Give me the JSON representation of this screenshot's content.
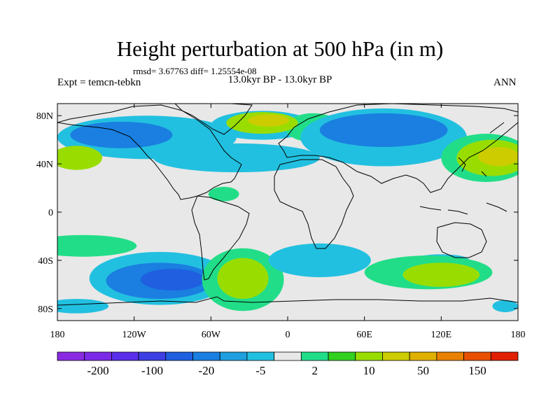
{
  "title": "Height perturbation at 500 hPa (in m)",
  "stats": "rmsd= 3.67763 diff= 1.25554e-08",
  "experiment": "Expt = temcn-tebkn",
  "subtitle": "13.0kyr BP - 13.0kyr BP",
  "season": "ANN",
  "map": {
    "projection": "cylindrical equidistant",
    "lon_range": [
      -180,
      180
    ],
    "lat_range": [
      -90,
      90
    ],
    "y_ticks": [
      {
        "lat": 80,
        "label": "80N"
      },
      {
        "lat": 40,
        "label": "40N"
      },
      {
        "lat": 0,
        "label": "0"
      },
      {
        "lat": -40,
        "label": "40S"
      },
      {
        "lat": -80,
        "label": "80S"
      }
    ],
    "x_ticks": [
      {
        "lon": -180,
        "label": "180"
      },
      {
        "lon": -120,
        "label": "120W"
      },
      {
        "lon": -60,
        "label": "60W"
      },
      {
        "lon": 0,
        "label": "0"
      },
      {
        "lon": 60,
        "label": "60E"
      },
      {
        "lon": 120,
        "label": "120E"
      },
      {
        "lon": 180,
        "label": "180"
      }
    ]
  },
  "colorbar": {
    "colors": [
      "#8a2be2",
      "#7b2be8",
      "#5a2eea",
      "#3d3fe3",
      "#1f5fe0",
      "#1a7fe0",
      "#1f9fdf",
      "#22c0e0",
      "#e8e8e8",
      "#22dd88",
      "#33d022",
      "#99dd00",
      "#cccc00",
      "#e0b000",
      "#e88000",
      "#e85000",
      "#e02000"
    ],
    "labels": [
      {
        "after_box": 1,
        "text": "-200"
      },
      {
        "after_box": 3,
        "text": "-100"
      },
      {
        "after_box": 5,
        "text": "-20"
      },
      {
        "after_box": 7,
        "text": "-5"
      },
      {
        "after_box": 9,
        "text": "2"
      },
      {
        "after_box": 11,
        "text": "10"
      },
      {
        "after_box": 13,
        "text": "50"
      },
      {
        "after_box": 15,
        "text": "150"
      }
    ]
  },
  "anomalies": [
    {
      "lon": -20,
      "lat": 72,
      "rx": 40,
      "ry": 12,
      "level": -5
    },
    {
      "lon": 20,
      "lat": 70,
      "rx": 22,
      "ry": 12,
      "level": 2
    },
    {
      "lon": -20,
      "lat": 74,
      "rx": 28,
      "ry": 9,
      "level": 10
    },
    {
      "lon": -15,
      "lat": 76,
      "rx": 16,
      "ry": 5,
      "level": 50
    },
    {
      "lon": -110,
      "lat": 62,
      "rx": 70,
      "ry": 18,
      "level": -5
    },
    {
      "lon": -130,
      "lat": 64,
      "rx": 40,
      "ry": 11,
      "level": -20
    },
    {
      "lon": -40,
      "lat": 45,
      "rx": 65,
      "ry": 12,
      "level": -5
    },
    {
      "lon": -165,
      "lat": 45,
      "rx": 20,
      "ry": 10,
      "level": 10
    },
    {
      "lon": 75,
      "lat": 62,
      "rx": 65,
      "ry": 24,
      "level": -5
    },
    {
      "lon": 75,
      "lat": 68,
      "rx": 50,
      "ry": 14,
      "level": -20
    },
    {
      "lon": 155,
      "lat": 45,
      "rx": 35,
      "ry": 20,
      "level": 2
    },
    {
      "lon": 160,
      "lat": 45,
      "rx": 28,
      "ry": 15,
      "level": 10
    },
    {
      "lon": 165,
      "lat": 46,
      "rx": 16,
      "ry": 8,
      "level": 50
    },
    {
      "lon": -160,
      "lat": -28,
      "rx": 42,
      "ry": 9,
      "level": 2
    },
    {
      "lon": -100,
      "lat": -55,
      "rx": 55,
      "ry": 22,
      "level": -5
    },
    {
      "lon": -100,
      "lat": -57,
      "rx": 42,
      "ry": 15,
      "level": -20
    },
    {
      "lon": -90,
      "lat": -56,
      "rx": 25,
      "ry": 9,
      "level": -100
    },
    {
      "lon": -35,
      "lat": -56,
      "rx": 32,
      "ry": 26,
      "level": 2
    },
    {
      "lon": -35,
      "lat": -55,
      "rx": 20,
      "ry": 17,
      "level": 10
    },
    {
      "lon": 25,
      "lat": -40,
      "rx": 40,
      "ry": 14,
      "level": -5
    },
    {
      "lon": 120,
      "lat": -40,
      "rx": 22,
      "ry": 5,
      "level": -5
    },
    {
      "lon": 110,
      "lat": -50,
      "rx": 50,
      "ry": 14,
      "level": 2
    },
    {
      "lon": 120,
      "lat": -52,
      "rx": 30,
      "ry": 10,
      "level": 10
    },
    {
      "lon": -165,
      "lat": -78,
      "rx": 25,
      "ry": 6,
      "level": -5
    },
    {
      "lon": 170,
      "lat": -78,
      "rx": 10,
      "ry": 5,
      "level": -5
    },
    {
      "lon": -50,
      "lat": 15,
      "rx": 12,
      "ry": 6,
      "level": 2
    }
  ]
}
